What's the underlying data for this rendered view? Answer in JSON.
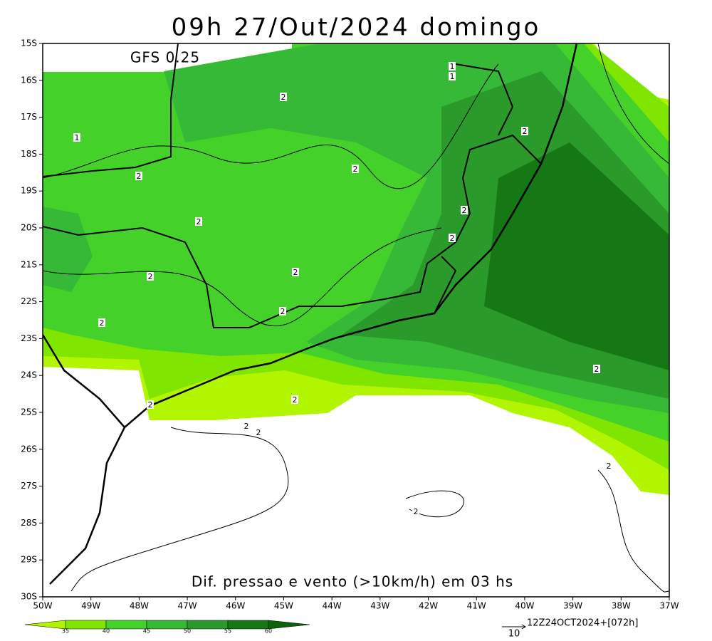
{
  "title": "09h 27/Out/2024 domingo",
  "model": "GFS 0.25",
  "caption": "Dif. pressao e vento (>10km/h) em 03 hs",
  "lat_labels": [
    "15S",
    "16S",
    "17S",
    "18S",
    "19S",
    "20S",
    "21S",
    "22S",
    "23S",
    "24S",
    "25S",
    "26S",
    "27S",
    "28S",
    "29S",
    "30S"
  ],
  "lon_labels": [
    "50W",
    "49W",
    "48W",
    "47W",
    "46W",
    "45W",
    "44W",
    "43W",
    "42W",
    "41W",
    "40W",
    "39W",
    "38W",
    "37W"
  ],
  "contour_labels": [
    "1",
    "1",
    "1",
    "2",
    "2",
    "2",
    "2",
    "2",
    "2",
    "2",
    "2",
    "2",
    "2",
    "2",
    "2",
    "2",
    "2",
    "2",
    "2",
    "2",
    "2"
  ],
  "colorbar": {
    "labels": [
      "35",
      "40",
      "45",
      "50",
      "55",
      "60"
    ]
  },
  "reference_vector": "10",
  "run_label": "12Z24OCT2024+[072h]"
}
